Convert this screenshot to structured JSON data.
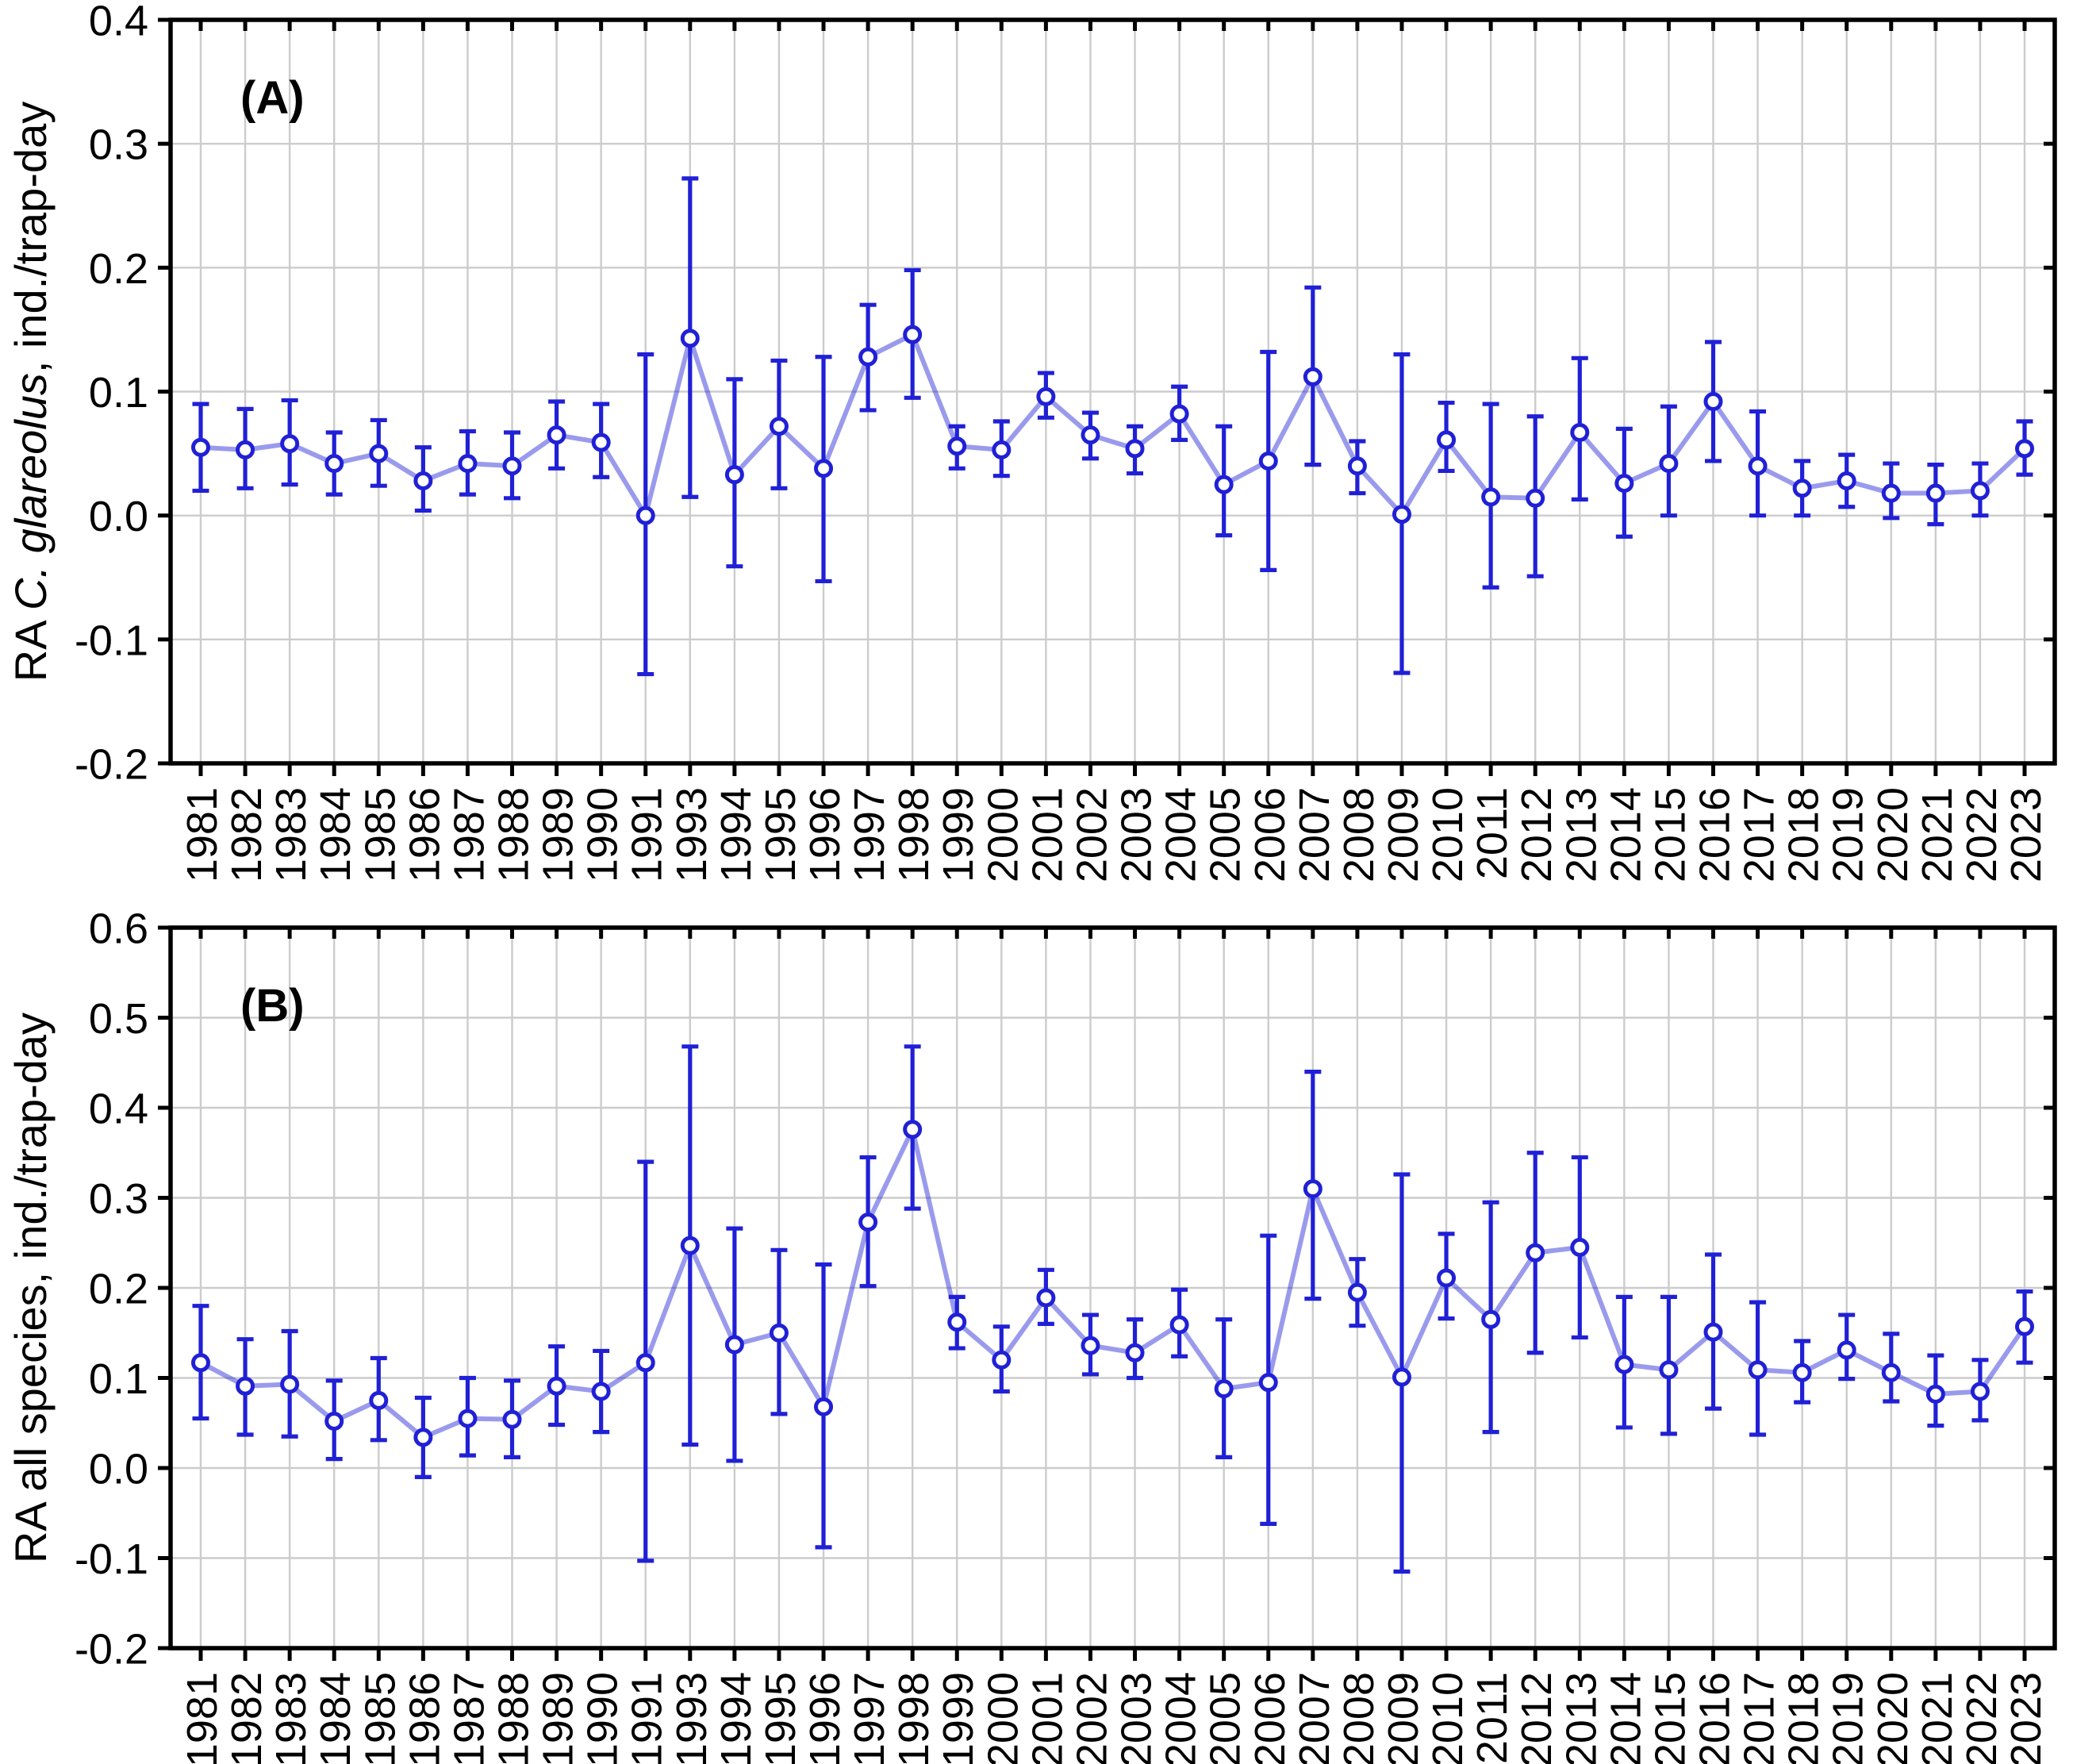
{
  "figure": {
    "background": "#ffffff",
    "accent_color": "#2020d6",
    "line_color": "#2020d6",
    "line_opacity": 0.45,
    "marker_fill": "#ffffff",
    "grid_color": "#cccccc",
    "axis_color": "#000000",
    "panels": [
      {
        "id": "A",
        "label": "(A)",
        "ylabel_parts": [
          {
            "text": "RA ",
            "italic": false
          },
          {
            "text": "C. glareolus",
            "italic": true
          },
          {
            "text": ", ind./trap-day",
            "italic": false
          }
        ],
        "yticks": [
          "0.4",
          "0.3",
          "0.2",
          "0.1",
          "0.0",
          "-0.1",
          "-0.2"
        ]
      },
      {
        "id": "B",
        "label": "(B)",
        "ylabel_parts": [
          {
            "text": "RA all species, ind./trap-day",
            "italic": false
          }
        ],
        "yticks": [
          "0.6",
          "0.5",
          "0.4",
          "0.3",
          "0.2",
          "0.1",
          "0.0",
          "-0.1",
          "-0.2"
        ]
      }
    ]
  },
  "chart_data": [
    {
      "type": "line",
      "panel": "A",
      "title": "(A)",
      "ylabel": "RA C. glareolus, ind./trap-day",
      "xlabel": "",
      "ylim": [
        -0.2,
        0.4
      ],
      "ytick_step": 0.1,
      "grid": true,
      "legend_position": "none",
      "marker": "open-circle",
      "error_bars": true,
      "categories": [
        "1981",
        "1982",
        "1983",
        "1984",
        "1985",
        "1986",
        "1987",
        "1988",
        "1989",
        "1990",
        "1991",
        "1993",
        "1994",
        "1995",
        "1996",
        "1997",
        "1998",
        "1999",
        "2000",
        "2001",
        "2002",
        "2003",
        "2004",
        "2005",
        "2006",
        "2007",
        "2008",
        "2009",
        "2010",
        "2011",
        "2012",
        "2013",
        "2014",
        "2015",
        "2016",
        "2017",
        "2018",
        "2019",
        "2020",
        "2021",
        "2022",
        "2023"
      ],
      "series": [
        {
          "name": "RA C. glareolus",
          "values": [
            0.055,
            0.053,
            0.058,
            0.042,
            0.05,
            0.028,
            0.042,
            0.04,
            0.065,
            0.059,
            0.0,
            0.143,
            0.033,
            0.072,
            0.038,
            0.128,
            0.146,
            0.056,
            0.053,
            0.096,
            0.065,
            0.054,
            0.082,
            0.025,
            0.044,
            0.112,
            0.04,
            0.001,
            0.061,
            0.015,
            0.014,
            0.067,
            0.026,
            0.042,
            0.092,
            0.04,
            0.022,
            0.028,
            0.018,
            0.018,
            0.02,
            0.054
          ],
          "lower": [
            0.02,
            0.022,
            0.025,
            0.017,
            0.024,
            0.004,
            0.017,
            0.014,
            0.038,
            0.031,
            -0.128,
            0.015,
            -0.041,
            0.022,
            -0.053,
            0.085,
            0.095,
            0.038,
            0.032,
            0.079,
            0.046,
            0.034,
            0.061,
            -0.016,
            -0.044,
            0.041,
            0.018,
            -0.127,
            0.036,
            -0.058,
            -0.049,
            0.013,
            -0.017,
            0.0,
            0.044,
            0.0,
            0.0,
            0.007,
            -0.002,
            -0.007,
            0.0,
            0.033
          ],
          "upper": [
            0.09,
            0.086,
            0.093,
            0.067,
            0.077,
            0.055,
            0.068,
            0.067,
            0.092,
            0.09,
            0.13,
            0.272,
            0.11,
            0.125,
            0.128,
            0.17,
            0.198,
            0.072,
            0.076,
            0.115,
            0.083,
            0.072,
            0.104,
            0.072,
            0.132,
            0.184,
            0.06,
            0.13,
            0.091,
            0.09,
            0.08,
            0.127,
            0.07,
            0.088,
            0.14,
            0.084,
            0.044,
            0.049,
            0.042,
            0.041,
            0.042,
            0.076
          ]
        }
      ]
    },
    {
      "type": "line",
      "panel": "B",
      "title": "(B)",
      "ylabel": "RA all species, ind./trap-day",
      "xlabel": "",
      "ylim": [
        -0.2,
        0.6
      ],
      "ytick_step": 0.1,
      "grid": true,
      "legend_position": "none",
      "marker": "open-circle",
      "error_bars": true,
      "categories": [
        "1981",
        "1982",
        "1983",
        "1984",
        "1985",
        "1986",
        "1987",
        "1988",
        "1989",
        "1990",
        "1991",
        "1993",
        "1994",
        "1995",
        "1996",
        "1997",
        "1998",
        "1999",
        "2000",
        "2001",
        "2002",
        "2003",
        "2004",
        "2005",
        "2006",
        "2007",
        "2008",
        "2009",
        "2010",
        "2011",
        "2012",
        "2013",
        "2014",
        "2015",
        "2016",
        "2017",
        "2018",
        "2019",
        "2020",
        "2021",
        "2022",
        "2023"
      ],
      "series": [
        {
          "name": "RA all species",
          "values": [
            0.117,
            0.091,
            0.093,
            0.052,
            0.075,
            0.034,
            0.055,
            0.054,
            0.091,
            0.085,
            0.117,
            0.247,
            0.137,
            0.15,
            0.068,
            0.273,
            0.376,
            0.162,
            0.12,
            0.189,
            0.136,
            0.128,
            0.159,
            0.088,
            0.095,
            0.31,
            0.195,
            0.101,
            0.211,
            0.165,
            0.239,
            0.245,
            0.115,
            0.109,
            0.151,
            0.109,
            0.106,
            0.131,
            0.106,
            0.082,
            0.085,
            0.157
          ],
          "lower": [
            0.055,
            0.037,
            0.035,
            0.01,
            0.031,
            -0.01,
            0.014,
            0.012,
            0.048,
            0.04,
            -0.103,
            0.026,
            0.008,
            0.06,
            -0.088,
            0.202,
            0.288,
            0.133,
            0.085,
            0.16,
            0.104,
            0.1,
            0.124,
            0.012,
            -0.062,
            0.188,
            0.158,
            -0.115,
            0.166,
            0.04,
            0.128,
            0.145,
            0.045,
            0.038,
            0.066,
            0.037,
            0.073,
            0.099,
            0.074,
            0.047,
            0.053,
            0.117
          ],
          "upper": [
            0.18,
            0.143,
            0.152,
            0.097,
            0.122,
            0.078,
            0.1,
            0.097,
            0.135,
            0.13,
            0.34,
            0.468,
            0.266,
            0.242,
            0.226,
            0.345,
            0.468,
            0.19,
            0.157,
            0.22,
            0.17,
            0.165,
            0.198,
            0.165,
            0.258,
            0.44,
            0.232,
            0.326,
            0.26,
            0.295,
            0.35,
            0.345,
            0.19,
            0.19,
            0.237,
            0.184,
            0.141,
            0.17,
            0.149,
            0.125,
            0.12,
            0.196
          ]
        }
      ]
    }
  ]
}
